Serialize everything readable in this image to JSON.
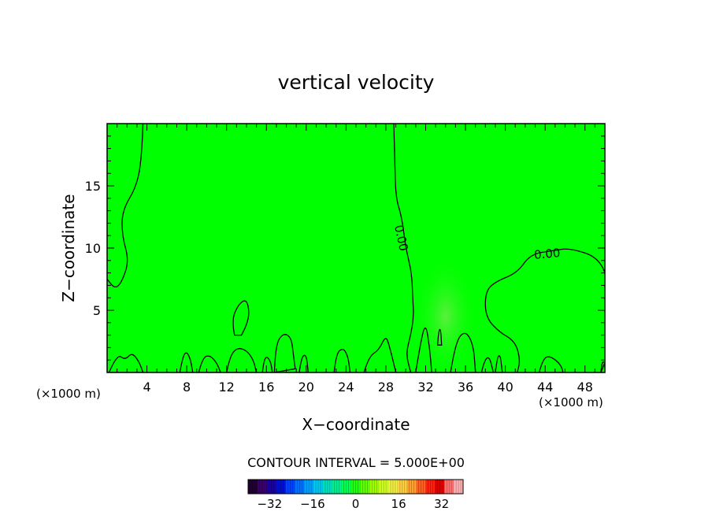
{
  "chart_data": {
    "type": "contour",
    "title": "vertical velocity",
    "xlabel": "X−coordinate",
    "ylabel": "Z−coordinate",
    "x_units_left": "(×1000 m)",
    "x_units_right": "(×1000 m)",
    "xlim": [
      0,
      50
    ],
    "ylim": [
      0,
      20
    ],
    "x_ticks": [
      {
        "value": 4,
        "label": "4"
      },
      {
        "value": 8,
        "label": "8"
      },
      {
        "value": 12,
        "label": "12"
      },
      {
        "value": 16,
        "label": "16"
      },
      {
        "value": 20,
        "label": "20"
      },
      {
        "value": 24,
        "label": "24"
      },
      {
        "value": 28,
        "label": "28"
      },
      {
        "value": 32,
        "label": "32"
      },
      {
        "value": 36,
        "label": "36"
      },
      {
        "value": 40,
        "label": "40"
      },
      {
        "value": 44,
        "label": "44"
      },
      {
        "value": 48,
        "label": "48"
      }
    ],
    "y_ticks": [
      {
        "value": 5,
        "label": "5"
      },
      {
        "value": 10,
        "label": "10"
      },
      {
        "value": 15,
        "label": "15"
      }
    ],
    "contour_labels": [
      {
        "text": "0.00",
        "x": 29.5,
        "y": 10.8,
        "angle": 78
      },
      {
        "text": "0.00",
        "x": 44.2,
        "y": 9.5,
        "angle": -5
      }
    ],
    "contours": [
      {
        "level": 0,
        "points": [
          [
            3.6,
            20
          ],
          [
            3.5,
            17.5
          ],
          [
            3.0,
            15.0
          ],
          [
            1.5,
            13.0
          ],
          [
            1.5,
            11.0
          ],
          [
            2.2,
            9.0
          ],
          [
            1.5,
            7.3
          ],
          [
            0.8,
            6.7
          ],
          [
            0,
            7.5
          ]
        ]
      },
      {
        "level": 0,
        "points": [
          [
            28.8,
            20
          ],
          [
            28.9,
            17
          ],
          [
            29.0,
            14
          ],
          [
            29.6,
            12.5
          ],
          [
            30.0,
            10.0
          ],
          [
            30.6,
            8.0
          ],
          [
            30.7,
            6.0
          ],
          [
            30.8,
            4.5
          ],
          [
            30.5,
            3.0
          ],
          [
            30.0,
            1.5
          ],
          [
            30.5,
            0
          ]
        ]
      },
      {
        "level": 0,
        "points": [
          [
            50,
            8.0
          ],
          [
            49.5,
            9.2
          ],
          [
            46.5,
            10.0
          ],
          [
            44.8,
            9.8
          ],
          [
            42.5,
            9.5
          ],
          [
            41.2,
            8.0
          ],
          [
            39.0,
            7.3
          ],
          [
            38.0,
            6.5
          ],
          [
            38.0,
            4.5
          ],
          [
            39.3,
            3.3
          ],
          [
            41.0,
            2.5
          ],
          [
            41.5,
            1.0
          ],
          [
            41.2,
            0
          ]
        ]
      },
      {
        "level": 0,
        "closed": true,
        "points": [
          [
            12.8,
            3.0
          ],
          [
            12.5,
            4.2
          ],
          [
            13.2,
            5.5
          ],
          [
            14.0,
            5.9
          ],
          [
            14.3,
            4.8
          ],
          [
            14.0,
            3.8
          ],
          [
            13.5,
            3.0
          ]
        ]
      },
      {
        "level": 0,
        "closed": true,
        "points": [
          [
            16.8,
            0
          ],
          [
            16.9,
            2.2
          ],
          [
            17.7,
            3.2
          ],
          [
            18.5,
            2.8
          ],
          [
            18.7,
            1.5
          ],
          [
            18.9,
            0.3
          ]
        ]
      },
      {
        "level": 0,
        "closed": true,
        "points": [
          [
            22.8,
            0
          ],
          [
            23.0,
            1.5
          ],
          [
            23.7,
            2.0
          ],
          [
            24.2,
            1.3
          ],
          [
            24.4,
            0
          ]
        ]
      },
      {
        "level": 0,
        "closed": true,
        "points": [
          [
            43.4,
            0
          ],
          [
            43.8,
            1.2
          ],
          [
            44.6,
            1.3
          ],
          [
            45.6,
            0.6
          ],
          [
            45.8,
            0
          ]
        ]
      },
      {
        "level": 0,
        "closed": true,
        "points": [
          [
            33.2,
            2.2
          ],
          [
            33.3,
            3.4
          ],
          [
            33.5,
            3.5
          ],
          [
            33.6,
            2.2
          ]
        ]
      },
      {
        "level": 0,
        "closed": true,
        "points": [
          [
            31.0,
            0
          ],
          [
            31.5,
            2.5
          ],
          [
            32.0,
            4.0
          ],
          [
            32.4,
            2.0
          ],
          [
            32.6,
            0
          ]
        ]
      },
      {
        "level": 0,
        "closed": true,
        "points": [
          [
            34.5,
            0
          ],
          [
            35.0,
            2.5
          ],
          [
            36.0,
            3.4
          ],
          [
            36.8,
            2.2
          ],
          [
            37.0,
            0
          ]
        ]
      },
      {
        "level": 0,
        "closed": true,
        "points": [
          [
            12.0,
            0
          ],
          [
            12.3,
            1.2
          ],
          [
            13.0,
            2.0
          ],
          [
            14.0,
            1.8
          ],
          [
            14.7,
            1.0
          ],
          [
            15.0,
            0
          ]
        ]
      },
      {
        "level": 0,
        "closed": true,
        "points": [
          [
            25.8,
            0
          ],
          [
            26.3,
            1.3
          ],
          [
            27.3,
            1.8
          ],
          [
            28.0,
            3.0
          ],
          [
            28.4,
            2.0
          ],
          [
            29.0,
            0
          ]
        ]
      },
      {
        "level": 0,
        "closed": true,
        "points": [
          [
            0.2,
            0
          ],
          [
            1.0,
            1.5
          ],
          [
            1.8,
            1.0
          ],
          [
            2.5,
            1.6
          ],
          [
            3.2,
            0.9
          ],
          [
            3.6,
            0
          ]
        ]
      },
      {
        "level": 0,
        "closed": true,
        "points": [
          [
            7.3,
            0
          ],
          [
            7.6,
            1.3
          ],
          [
            8.0,
            1.7
          ],
          [
            8.4,
            1.0
          ],
          [
            8.6,
            0
          ]
        ]
      },
      {
        "level": 0,
        "closed": true,
        "points": [
          [
            9.2,
            0
          ],
          [
            9.6,
            1.2
          ],
          [
            10.3,
            1.4
          ],
          [
            11.0,
            0.8
          ],
          [
            11.4,
            0
          ]
        ]
      },
      {
        "level": 0,
        "closed": true,
        "points": [
          [
            15.6,
            0
          ],
          [
            15.8,
            1.4
          ],
          [
            16.4,
            1.0
          ],
          [
            16.6,
            0
          ]
        ]
      },
      {
        "level": 0,
        "closed": true,
        "points": [
          [
            19.3,
            0
          ],
          [
            19.5,
            1.2
          ],
          [
            20.0,
            1.5
          ],
          [
            20.2,
            0
          ]
        ]
      },
      {
        "level": 0,
        "closed": true,
        "points": [
          [
            37.6,
            0
          ],
          [
            37.9,
            1.0
          ],
          [
            38.4,
            1.3
          ],
          [
            38.8,
            0
          ]
        ]
      },
      {
        "level": 0,
        "closed": true,
        "points": [
          [
            39.0,
            0
          ],
          [
            39.2,
            1.3
          ],
          [
            39.5,
            1.4
          ],
          [
            39.7,
            0
          ]
        ]
      },
      {
        "level": 0,
        "closed": true,
        "points": [
          [
            49.6,
            0
          ],
          [
            49.7,
            0.9
          ],
          [
            50,
            0.8
          ]
        ]
      }
    ],
    "fill": {
      "background": "#00ff00",
      "anomaly_color": "#66ee44",
      "anomaly": {
        "x": 34.0,
        "y": 4.5,
        "rx": 3.2,
        "ry": 5.0
      }
    },
    "colorbar": {
      "title": "CONTOUR INTERVAL = 5.000E+00",
      "range": [
        -40,
        40
      ],
      "ticks": [
        {
          "value": -32,
          "label": "−32"
        },
        {
          "value": -16,
          "label": "−16"
        },
        {
          "value": 0,
          "label": "0"
        },
        {
          "value": 16,
          "label": "16"
        },
        {
          "value": 32,
          "label": "32"
        }
      ],
      "colors": [
        "#200030",
        "#3a006a",
        "#1a00a0",
        "#0010d0",
        "#0040ff",
        "#0070ff",
        "#00a0ff",
        "#00c8f0",
        "#00e0c0",
        "#00f090",
        "#00ff50",
        "#20ff10",
        "#60ff00",
        "#a0ff00",
        "#d0ff20",
        "#f0f040",
        "#ffd040",
        "#ffa030",
        "#ff6020",
        "#ff2010",
        "#e00000",
        "#ff7070",
        "#ffb0b0"
      ]
    }
  }
}
